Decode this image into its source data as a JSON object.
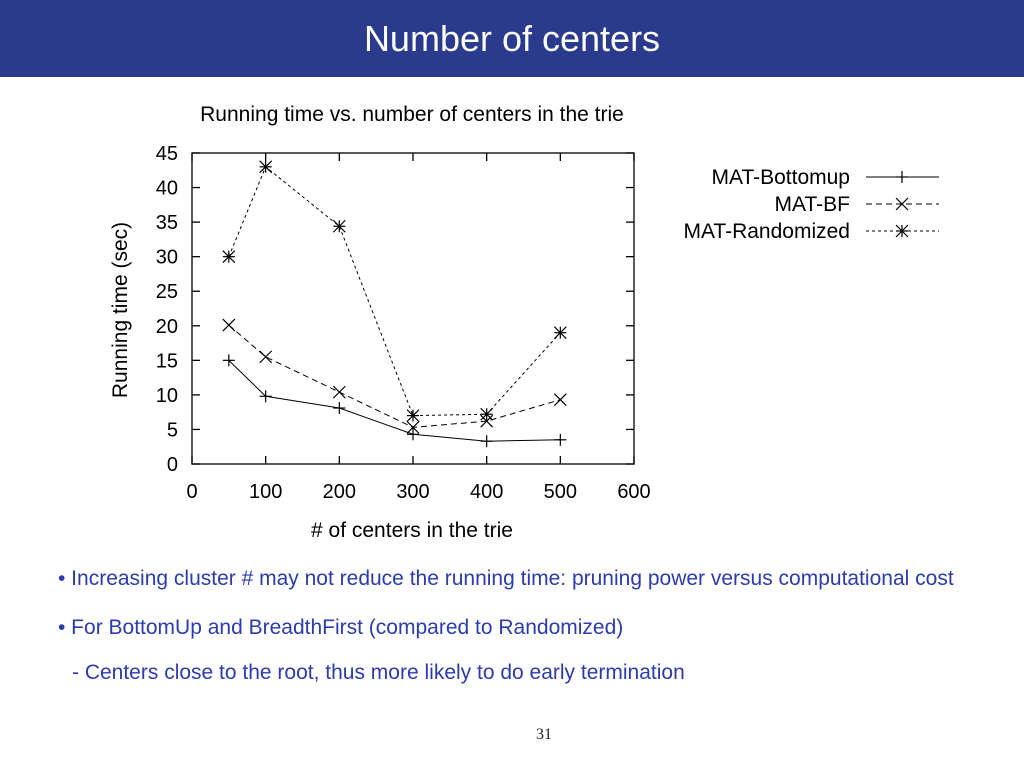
{
  "slide": {
    "title": "Number of centers",
    "page_number": "31",
    "bullets": [
      "• Increasing cluster # may not reduce the running time: pruning power versus computational cost",
      "• For BottomUp and BreadthFirst (compared to Randomized)",
      "- Centers close to the root, thus more likely to do early termination"
    ],
    "colors": {
      "header_bg": "#2a3a8c",
      "bullet_text": "#2b3bb0"
    }
  },
  "chart_data": {
    "type": "line",
    "title": "Running time vs. number of centers in the trie",
    "xlabel": "# of centers in the trie",
    "ylabel": "Running time (sec)",
    "xlim": [
      0,
      600
    ],
    "ylim": [
      0,
      45
    ],
    "xticks": [
      0,
      100,
      200,
      300,
      400,
      500,
      600
    ],
    "yticks": [
      0,
      5,
      10,
      15,
      20,
      25,
      30,
      35,
      40,
      45
    ],
    "grid": false,
    "legend": "top-right",
    "x": [
      50,
      100,
      200,
      300,
      400,
      500
    ],
    "series": [
      {
        "name": "MAT-Bottomup",
        "marker": "plus",
        "dash": "solid",
        "values": [
          15,
          9.8,
          8.1,
          4.3,
          3.3,
          3.5
        ]
      },
      {
        "name": "MAT-BF",
        "marker": "cross",
        "dash": "dashed",
        "values": [
          20.1,
          15.5,
          10.4,
          5.3,
          6.2,
          9.3
        ]
      },
      {
        "name": "MAT-Randomized",
        "marker": "star",
        "dash": "dotted",
        "values": [
          30,
          43,
          34.4,
          7,
          7.2,
          19
        ]
      }
    ]
  }
}
